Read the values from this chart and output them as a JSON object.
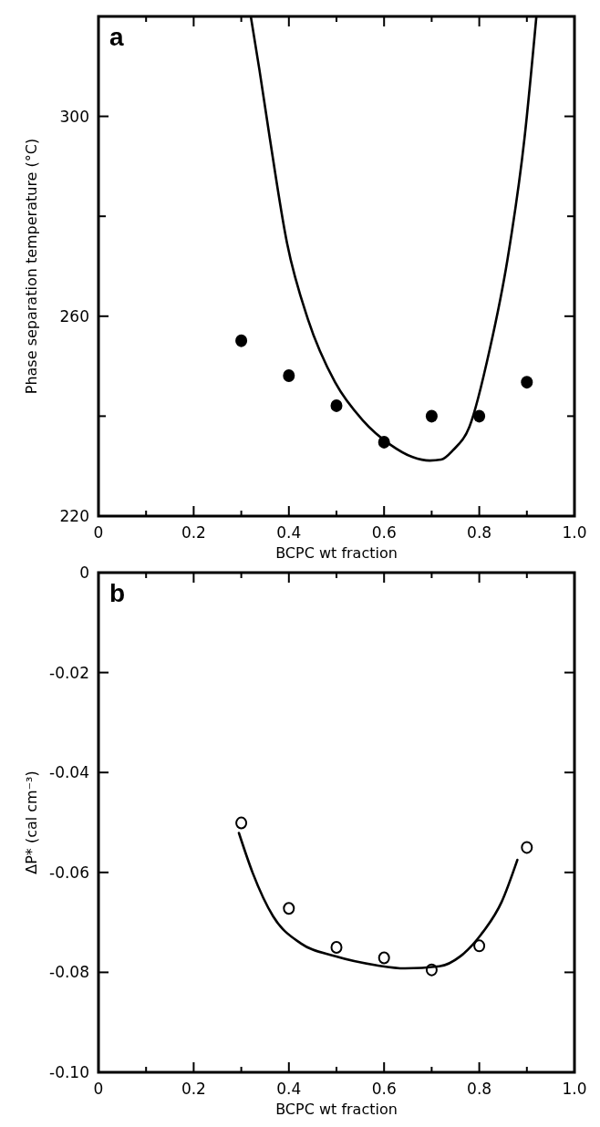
{
  "chart_data": [
    {
      "type": "scatter",
      "xlabel": "BCPC wt fraction",
      "ylabel": "Phase separation temperature (°C)",
      "annotations": [
        "a"
      ],
      "xlim": [
        0,
        1
      ],
      "ylim": [
        220,
        320
      ],
      "xticks": [
        0,
        {
          "value": 0.1,
          "label": null
        },
        0.2,
        {
          "value": 0.3,
          "label": null
        },
        0.4,
        {
          "value": 0.5,
          "label": null
        },
        0.6,
        {
          "value": 0.7,
          "label": null
        },
        0.8,
        {
          "value": 0.9,
          "label": null
        },
        {
          "value": 1,
          "label": "1.0"
        }
      ],
      "yticks": [
        220,
        {
          "value": 240,
          "label": null
        },
        260,
        {
          "value": 280,
          "label": null
        },
        300,
        {
          "value": 320,
          "label": null
        }
      ],
      "series": [
        {
          "color": "#000000",
          "marker": "circle",
          "x": [
            0.3,
            0.4,
            0.5,
            0.6,
            0.7,
            0.8,
            0.9
          ],
          "values": [
            255.1,
            248.1,
            242.1,
            234.8,
            240,
            240,
            246.8
          ]
        },
        {
          "type": "line",
          "color": "#000000",
          "line_style": "solid",
          "x": [
            0.32,
            0.338,
            0.36,
            0.396,
            0.44,
            0.497,
            0.555,
            0.613,
            0.66,
            0.696,
            0.72,
            0.745,
            0.779,
            0.823,
            0.859,
            0.895,
            0.92
          ],
          "values": [
            320,
            309.4,
            295.6,
            274.7,
            259.4,
            246.8,
            239.2,
            234.3,
            231.8,
            231.1,
            231.3,
            233.2,
            237.8,
            253.8,
            271.2,
            295.6,
            320
          ]
        }
      ]
    },
    {
      "type": "scatter",
      "xlabel": "BCPC wt fraction",
      "ylabel": "ΔP* (cal cm⁻³)",
      "annotations": [
        "b"
      ],
      "xlim": [
        0,
        1
      ],
      "ylim": [
        -0.1,
        0
      ],
      "xticks": [
        0,
        {
          "value": 0.1,
          "label": null
        },
        0.2,
        {
          "value": 0.3,
          "label": null
        },
        0.4,
        {
          "value": 0.5,
          "label": null
        },
        0.6,
        {
          "value": 0.7,
          "label": null
        },
        0.8,
        {
          "value": 0.9,
          "label": null
        },
        {
          "value": 1,
          "label": "1.0"
        }
      ],
      "yticks": [
        {
          "value": -0.1,
          "label": "-0.10"
        },
        -0.08,
        -0.06,
        -0.04,
        -0.02,
        0
      ],
      "series": [
        {
          "color": "#000000",
          "marker": "circle",
          "x": [
            0.3,
            0.4,
            0.5,
            0.6,
            0.7,
            0.8,
            0.9
          ],
          "values": [
            -0.0501,
            -0.0672,
            -0.075,
            -0.0771,
            -0.0795,
            -0.0747,
            -0.055
          ]
        },
        {
          "type": "line",
          "color": "#000000",
          "line_style": "solid",
          "x": [
            0.295,
            0.324,
            0.367,
            0.425,
            0.498,
            0.585,
            0.644,
            0.716,
            0.76,
            0.804,
            0.847,
            0.88
          ],
          "values": [
            -0.0521,
            -0.0601,
            -0.0688,
            -0.0742,
            -0.0768,
            -0.0786,
            -0.0792,
            -0.0788,
            -0.0768,
            -0.0724,
            -0.0659,
            -0.0575
          ]
        }
      ]
    }
  ]
}
